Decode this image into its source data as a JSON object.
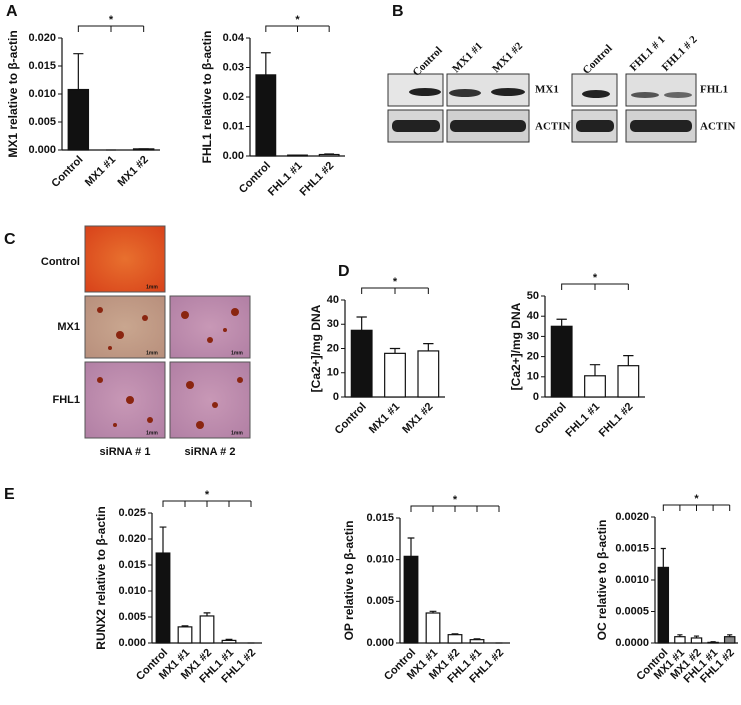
{
  "panel_labels": [
    "A",
    "B",
    "C",
    "D",
    "E"
  ],
  "chart_data": [
    {
      "type": "bar",
      "ylabel": "MX1 relative to β-actin",
      "categories": [
        "Control",
        "MX1 #1",
        "MX1 #2"
      ],
      "values": [
        0.0108,
        0,
        0.0002
      ],
      "errors": [
        0.0064,
        0,
        0
      ],
      "colors": [
        "#111111",
        "#ffffff",
        "#ffffff"
      ],
      "ylim": [
        0,
        0.02
      ],
      "yticks": [
        {
          "value": 0,
          "label": "0.000"
        },
        {
          "value": 0.005,
          "label": "0.005"
        },
        {
          "value": 0.01,
          "label": "0.010"
        },
        {
          "value": 0.015,
          "label": "0.015"
        },
        {
          "value": 0.02,
          "label": "0.020"
        }
      ],
      "significance": "*"
    },
    {
      "type": "bar",
      "ylabel": "FHL1 relative to β-actin",
      "categories": [
        "Control",
        "FHL1 #1",
        "FHL1 #2"
      ],
      "values": [
        0.0275,
        0.0003,
        0.0005
      ],
      "errors": [
        0.0075,
        0,
        0.0002
      ],
      "colors": [
        "#111111",
        "#ffffff",
        "#ffffff"
      ],
      "ylim": [
        0,
        0.04
      ],
      "yticks": [
        {
          "value": 0,
          "label": "0.00"
        },
        {
          "value": 0.01,
          "label": "0.01"
        },
        {
          "value": 0.02,
          "label": "0.02"
        },
        {
          "value": 0.03,
          "label": "0.03"
        },
        {
          "value": 0.04,
          "label": "0.04"
        }
      ],
      "significance": "*"
    },
    {
      "type": "bar",
      "ylabel": "[Ca2+]/mg DNA",
      "categories": [
        "Control",
        "MX1 #1",
        "MX1 #2"
      ],
      "values": [
        27.5,
        18,
        19
      ],
      "errors": [
        5.5,
        2,
        3
      ],
      "colors": [
        "#111111",
        "#ffffff",
        "#ffffff"
      ],
      "ylim": [
        0,
        40
      ],
      "yticks": [
        0,
        10,
        20,
        30,
        40
      ],
      "significance": "*"
    },
    {
      "type": "bar",
      "ylabel": "[Ca2+]/mg DNA",
      "categories": [
        "Control",
        "FHL1 #1",
        "FHL1 #2"
      ],
      "values": [
        35,
        10.5,
        15.5
      ],
      "errors": [
        3.5,
        5.5,
        5
      ],
      "colors": [
        "#111111",
        "#ffffff",
        "#ffffff"
      ],
      "ylim": [
        0,
        50
      ],
      "yticks": [
        0,
        10,
        20,
        30,
        40,
        50
      ],
      "significance": "*"
    },
    {
      "type": "bar",
      "ylabel": "RUNX2 relative to β-actin",
      "categories": [
        "Control",
        "MX1 #1",
        "MX1 #2",
        "FHL1 #1",
        "FHL1 #2"
      ],
      "values": [
        0.0173,
        0.0031,
        0.0052,
        0.0005,
        0
      ],
      "errors": [
        0.005,
        0.0002,
        0.0006,
        0.0002,
        0
      ],
      "colors": [
        "#111111",
        "#ffffff",
        "#ffffff",
        "#ffffff",
        "#ffffff"
      ],
      "ylim": [
        0,
        0.025
      ],
      "yticks": [
        {
          "value": 0,
          "label": "0.000"
        },
        {
          "value": 0.005,
          "label": "0.005"
        },
        {
          "value": 0.01,
          "label": "0.010"
        },
        {
          "value": 0.015,
          "label": "0.015"
        },
        {
          "value": 0.02,
          "label": "0.020"
        },
        {
          "value": 0.025,
          "label": "0.025"
        }
      ],
      "significance": "*"
    },
    {
      "type": "bar",
      "ylabel": "OP relative to β-actin",
      "categories": [
        "Control",
        "MX1 #1",
        "MX1 #2",
        "FHL1 #1",
        "FHL1 #2"
      ],
      "values": [
        0.0104,
        0.0036,
        0.001,
        0.0004,
        0
      ],
      "errors": [
        0.0022,
        0.0002,
        0.0001,
        0.0001,
        0
      ],
      "colors": [
        "#111111",
        "#ffffff",
        "#ffffff",
        "#ffffff",
        "#ffffff"
      ],
      "ylim": [
        0,
        0.015
      ],
      "yticks": [
        {
          "value": 0,
          "label": "0.000"
        },
        {
          "value": 0.005,
          "label": "0.005"
        },
        {
          "value": 0.01,
          "label": "0.010"
        },
        {
          "value": 0.015,
          "label": "0.015"
        }
      ],
      "significance": "*"
    },
    {
      "type": "bar",
      "ylabel": "OC relative to β-actin",
      "categories": [
        "Control",
        "MX1 #1",
        "MX1 #2",
        "FHL1 #1",
        "FHL1 #2"
      ],
      "values": [
        0.0012,
        0.0001,
        8e-05,
        1e-05,
        0.0001
      ],
      "errors": [
        0.0003,
        3e-05,
        3e-05,
        1e-05,
        3e-05
      ],
      "colors": [
        "#111111",
        "#ffffff",
        "#ffffff",
        "#ffffff",
        "#888888"
      ],
      "ylim": [
        0,
        0.002
      ],
      "yticks": [
        {
          "value": 0,
          "label": "0.0000"
        },
        {
          "value": 0.0005,
          "label": "0.0005"
        },
        {
          "value": 0.001,
          "label": "0.0010"
        },
        {
          "value": 0.0015,
          "label": "0.0015"
        },
        {
          "value": 0.002,
          "label": "0.0020"
        }
      ],
      "significance": "*"
    }
  ],
  "blot": {
    "left": {
      "lanes": [
        "Control",
        "MX1 #1",
        "MX1 #2"
      ],
      "rows": [
        "MX1",
        "ACTIN"
      ]
    },
    "right": {
      "lanes": [
        "Control",
        "FHL1 # 1",
        "FHL1 # 2"
      ],
      "rows": [
        "FHL1",
        "ACTIN"
      ]
    }
  },
  "micro": {
    "rows": [
      "Control",
      "MX1",
      "FHL1"
    ],
    "cols": [
      "siRNA # 1",
      "siRNA # 2"
    ],
    "scale": "1mm"
  }
}
